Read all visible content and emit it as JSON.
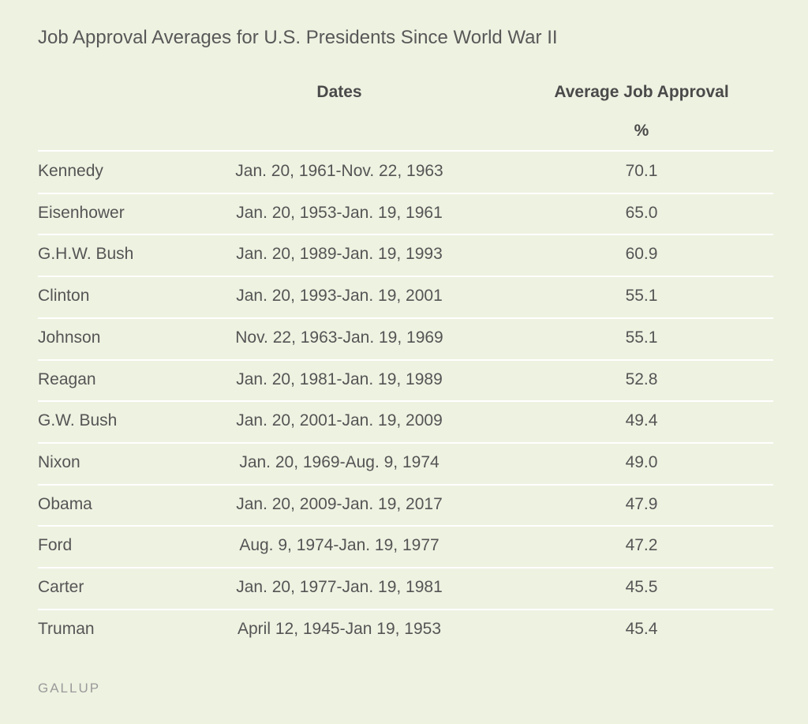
{
  "header": {
    "title": "Job Approval Averages for U.S. Presidents Since World War II"
  },
  "table": {
    "columns": [
      "Dates",
      "Average Job Approval"
    ],
    "units": "%",
    "rows": [
      [
        "Kennedy",
        "Jan. 20, 1961-Nov. 22, 1963",
        "70.1"
      ],
      [
        "Eisenhower",
        "Jan. 20, 1953-Jan. 19, 1961",
        "65.0"
      ],
      [
        "G.H.W. Bush",
        "Jan. 20, 1989-Jan. 19, 1993",
        "60.9"
      ],
      [
        "Clinton",
        "Jan. 20, 1993-Jan. 19, 2001",
        "55.1"
      ],
      [
        "Johnson",
        "Nov. 22, 1963-Jan. 19, 1969",
        "55.1"
      ],
      [
        "Reagan",
        "Jan. 20, 1981-Jan. 19, 1989",
        "52.8"
      ],
      [
        "G.W. Bush",
        "Jan. 20, 2001-Jan. 19, 2009",
        "49.4"
      ],
      [
        "Nixon",
        "Jan. 20, 1969-Aug. 9, 1974",
        "49.0"
      ],
      [
        "Obama",
        "Jan. 20, 2009-Jan. 19, 2017",
        "47.9"
      ],
      [
        "Ford",
        "Aug. 9, 1974-Jan. 19, 1977",
        "47.2"
      ],
      [
        "Carter",
        "Jan. 20, 1977-Jan. 19, 1981",
        "45.5"
      ],
      [
        "Truman",
        "April 12, 1945-Jan 19, 1953",
        "45.4"
      ]
    ]
  },
  "footer": {
    "source": "GALLUP"
  }
}
